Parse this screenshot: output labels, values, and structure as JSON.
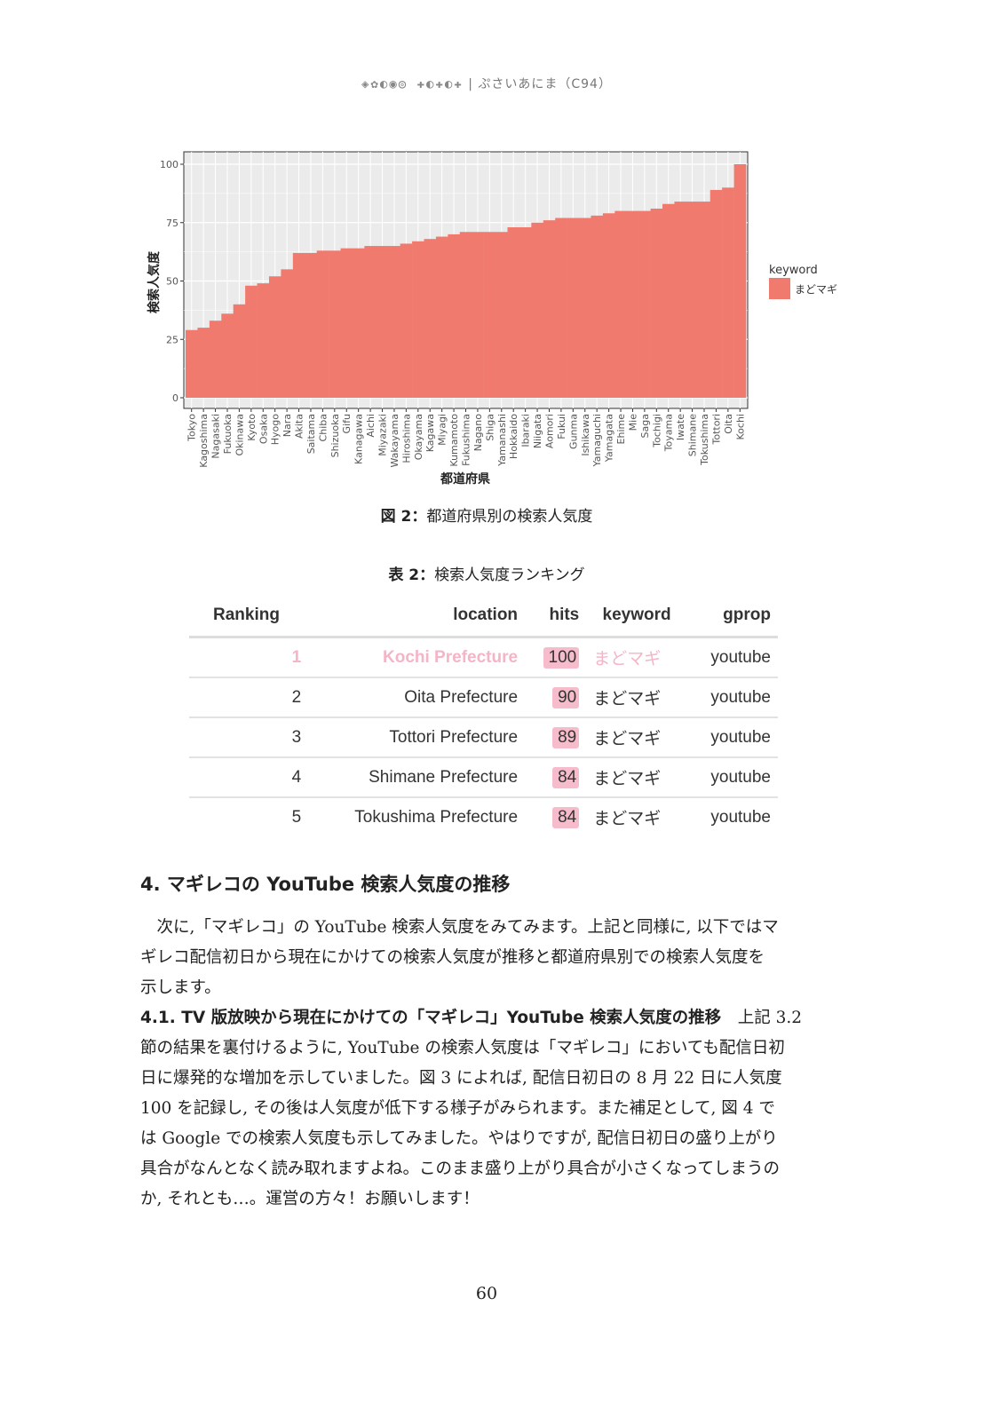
{
  "header": {
    "logo_text": "Puella Magi",
    "separator": "|",
    "title": "ぷさいあにま（C94）"
  },
  "chart_data": {
    "type": "bar",
    "title": "",
    "xlabel": "都道府県",
    "ylabel": "検索人気度",
    "ylim": [
      0,
      100
    ],
    "yticks": [
      0,
      25,
      50,
      75,
      100
    ],
    "grid": true,
    "legend": {
      "title": "keyword",
      "entries": [
        "まどマギ"
      ],
      "placement": "right"
    },
    "bar_color": "#F17A6F",
    "panel_color": "#EBEBEB",
    "categories": [
      "Tokyo",
      "Kagoshima",
      "Nagasaki",
      "Fukuoka",
      "Okinawa",
      "Kyoto",
      "Osaka",
      "Hyogo",
      "Nara",
      "Akita",
      "Saitama",
      "Chiba",
      "Shizuoka",
      "Gifu",
      "Kanagawa",
      "Aichi",
      "Miyazaki",
      "Wakayama",
      "Hiroshima",
      "Okayama",
      "Kagawa",
      "Miyagi",
      "Kumamoto",
      "Fukushima",
      "Nagano",
      "Shiga",
      "Yamanashi",
      "Hokkaido",
      "Ibaraki",
      "Niigata",
      "Aomori",
      "Fukui",
      "Gunma",
      "Ishikawa",
      "Yamaguchi",
      "Yamagata",
      "Ehime",
      "Mie",
      "Saga",
      "Tochigi",
      "Toyama",
      "Iwate",
      "Shimane",
      "Tokushima",
      "Tottori",
      "Oita",
      "Kochi"
    ],
    "values": [
      29,
      30,
      33,
      36,
      40,
      48,
      49,
      52,
      55,
      62,
      62,
      63,
      63,
      64,
      64,
      65,
      65,
      65,
      66,
      67,
      68,
      69,
      70,
      71,
      71,
      71,
      71,
      73,
      73,
      75,
      76,
      77,
      77,
      77,
      78,
      79,
      80,
      80,
      80,
      81,
      83,
      84,
      84,
      84,
      89,
      90,
      100
    ]
  },
  "figure_caption": {
    "label": "図 2：",
    "text": "都道府県別の検索人気度"
  },
  "table_caption": {
    "label": "表 2：",
    "text": "検索人気度ランキング"
  },
  "table": {
    "columns": [
      "Ranking",
      "location",
      "hits",
      "keyword",
      "gprop"
    ],
    "rows": [
      [
        "1",
        "Kochi Prefecture",
        "100",
        "まどマギ",
        "youtube"
      ],
      [
        "2",
        "Oita Prefecture",
        "90",
        "まどマギ",
        "youtube"
      ],
      [
        "3",
        "Tottori Prefecture",
        "89",
        "まどマギ",
        "youtube"
      ],
      [
        "4",
        "Shimane Prefecture",
        "84",
        "まどマギ",
        "youtube"
      ],
      [
        "5",
        "Tokushima Prefecture",
        "84",
        "まどマギ",
        "youtube"
      ]
    ],
    "highlight_color": "#F6BCCB"
  },
  "section": {
    "title": "4. マギレコの YouTube 検索人気度の推移",
    "para1": [
      "　次に,「マギレコ」の YouTube 検索人気度をみてみます。上記と同様に, 以下ではマ",
      "ギレコ配信初日から現在にかけての検索人気度が推移と都道府県別での検索人気度を",
      "示します。"
    ],
    "subsection_title": "4.1. TV 版放映から現在にかけての「マギレコ」YouTube 検索人気度の推移",
    "para2_first": "　上記 3.2",
    "para2": [
      "節の結果を裏付けるように, YouTube の検索人気度は「マギレコ」においても配信日初",
      "日に爆発的な増加を示していました。図 3 によれば, 配信日初日の 8 月 22 日に人気度",
      "100 を記録し, その後は人気度が低下する様子がみられます。また補足として, 図 4 で",
      "は Google での検索人気度も示してみました。やはりですが, 配信日初日の盛り上がり",
      "具合がなんとなく読み取れますよね。このまま盛り上がり具合が小さくなってしまうの",
      "か, それとも…。運営の方々！お願いします！"
    ]
  },
  "page_number": "60"
}
